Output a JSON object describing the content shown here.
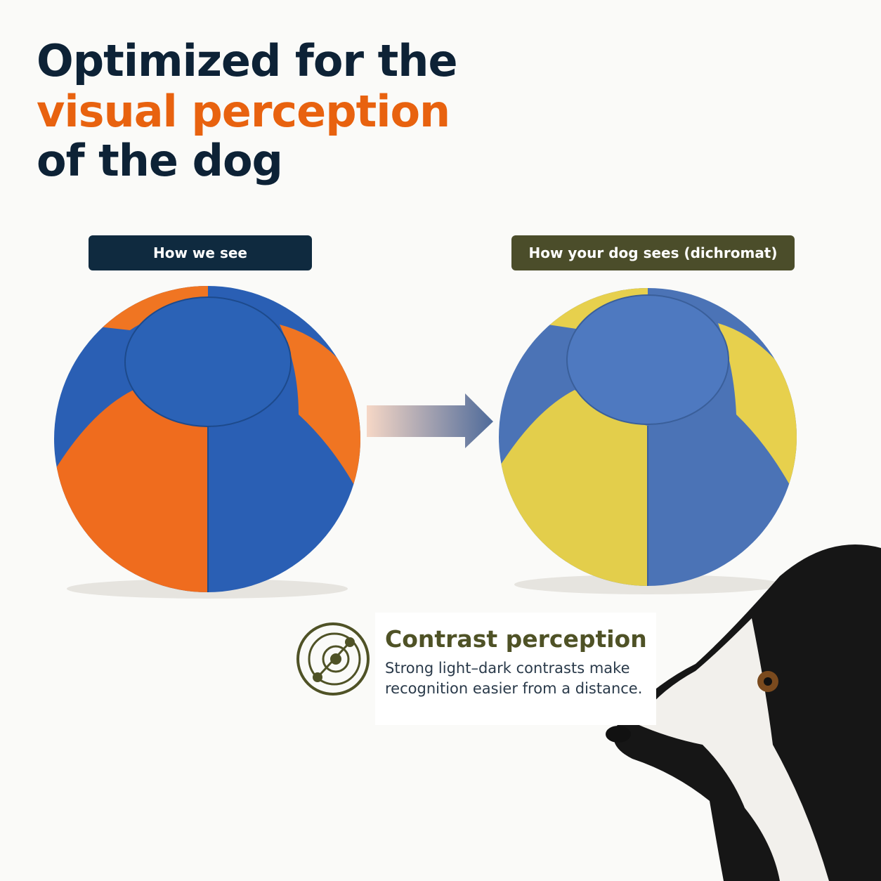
{
  "header": {
    "title_lines": [
      "Optimized for the",
      "visual perception",
      "of the dog"
    ]
  },
  "panels": [
    {
      "label": "How we see"
    },
    {
      "label": "How your dog sees (dichromat)"
    }
  ],
  "feature": {
    "title": "Contrast perception",
    "text": "Strong light–dark contrasts make recognition easier from a distance."
  }
}
